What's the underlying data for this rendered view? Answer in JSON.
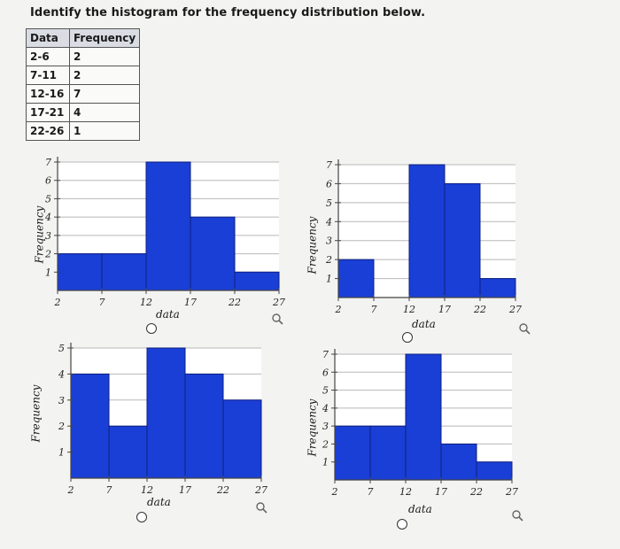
{
  "question": "Identify the histogram for the frequency distribution below.",
  "table": {
    "headers": [
      "Data",
      "Frequency"
    ],
    "rows": [
      [
        "2-6",
        "2"
      ],
      [
        "7-11",
        "2"
      ],
      [
        "12-16",
        "7"
      ],
      [
        "17-21",
        "4"
      ],
      [
        "22-26",
        "1"
      ]
    ]
  },
  "chart_data": [
    {
      "type": "bar",
      "xlabel": "data",
      "ylabel": "Frequency",
      "x_ticks": [
        "2",
        "7",
        "12",
        "17",
        "22",
        "27"
      ],
      "y_ticks": [
        "1",
        "2",
        "3",
        "4",
        "5",
        "6",
        "7"
      ],
      "ylim": [
        0,
        7
      ],
      "bins": [
        [
          2,
          7
        ],
        [
          7,
          12
        ],
        [
          12,
          17
        ],
        [
          17,
          22
        ],
        [
          22,
          27
        ]
      ],
      "values": [
        2,
        2,
        7,
        4,
        1
      ],
      "color": "#1a3fd6",
      "grid": true
    },
    {
      "type": "bar",
      "xlabel": "data",
      "ylabel": "Frequency",
      "x_ticks": [
        "2",
        "7",
        "12",
        "17",
        "22",
        "27"
      ],
      "y_ticks": [
        "1",
        "2",
        "3",
        "4",
        "5",
        "6",
        "7"
      ],
      "ylim": [
        0,
        7
      ],
      "bins": [
        [
          2,
          7
        ],
        [
          7,
          12
        ],
        [
          12,
          17
        ],
        [
          17,
          22
        ],
        [
          22,
          27
        ]
      ],
      "values": [
        2,
        0,
        7,
        6,
        1
      ],
      "color": "#1a3fd6",
      "grid": true
    },
    {
      "type": "bar",
      "xlabel": "data",
      "ylabel": "Frequency",
      "x_ticks": [
        "2",
        "7",
        "12",
        "17",
        "22",
        "27"
      ],
      "y_ticks": [
        "1",
        "2",
        "3",
        "4",
        "5"
      ],
      "ylim": [
        0,
        5
      ],
      "bins": [
        [
          2,
          7
        ],
        [
          7,
          12
        ],
        [
          12,
          17
        ],
        [
          17,
          22
        ],
        [
          22,
          27
        ]
      ],
      "values": [
        4,
        2,
        5,
        4,
        3
      ],
      "color": "#1a3fd6",
      "grid": true
    },
    {
      "type": "bar",
      "xlabel": "data",
      "ylabel": "Frequency",
      "x_ticks": [
        "2",
        "7",
        "12",
        "17",
        "22",
        "27"
      ],
      "y_ticks": [
        "1",
        "2",
        "3",
        "4",
        "5",
        "6",
        "7"
      ],
      "ylim": [
        0,
        7
      ],
      "bins": [
        [
          2,
          7
        ],
        [
          7,
          12
        ],
        [
          12,
          17
        ],
        [
          17,
          22
        ],
        [
          22,
          27
        ]
      ],
      "values": [
        3,
        3,
        7,
        2,
        1
      ],
      "color": "#1a3fd6",
      "grid": true
    }
  ]
}
